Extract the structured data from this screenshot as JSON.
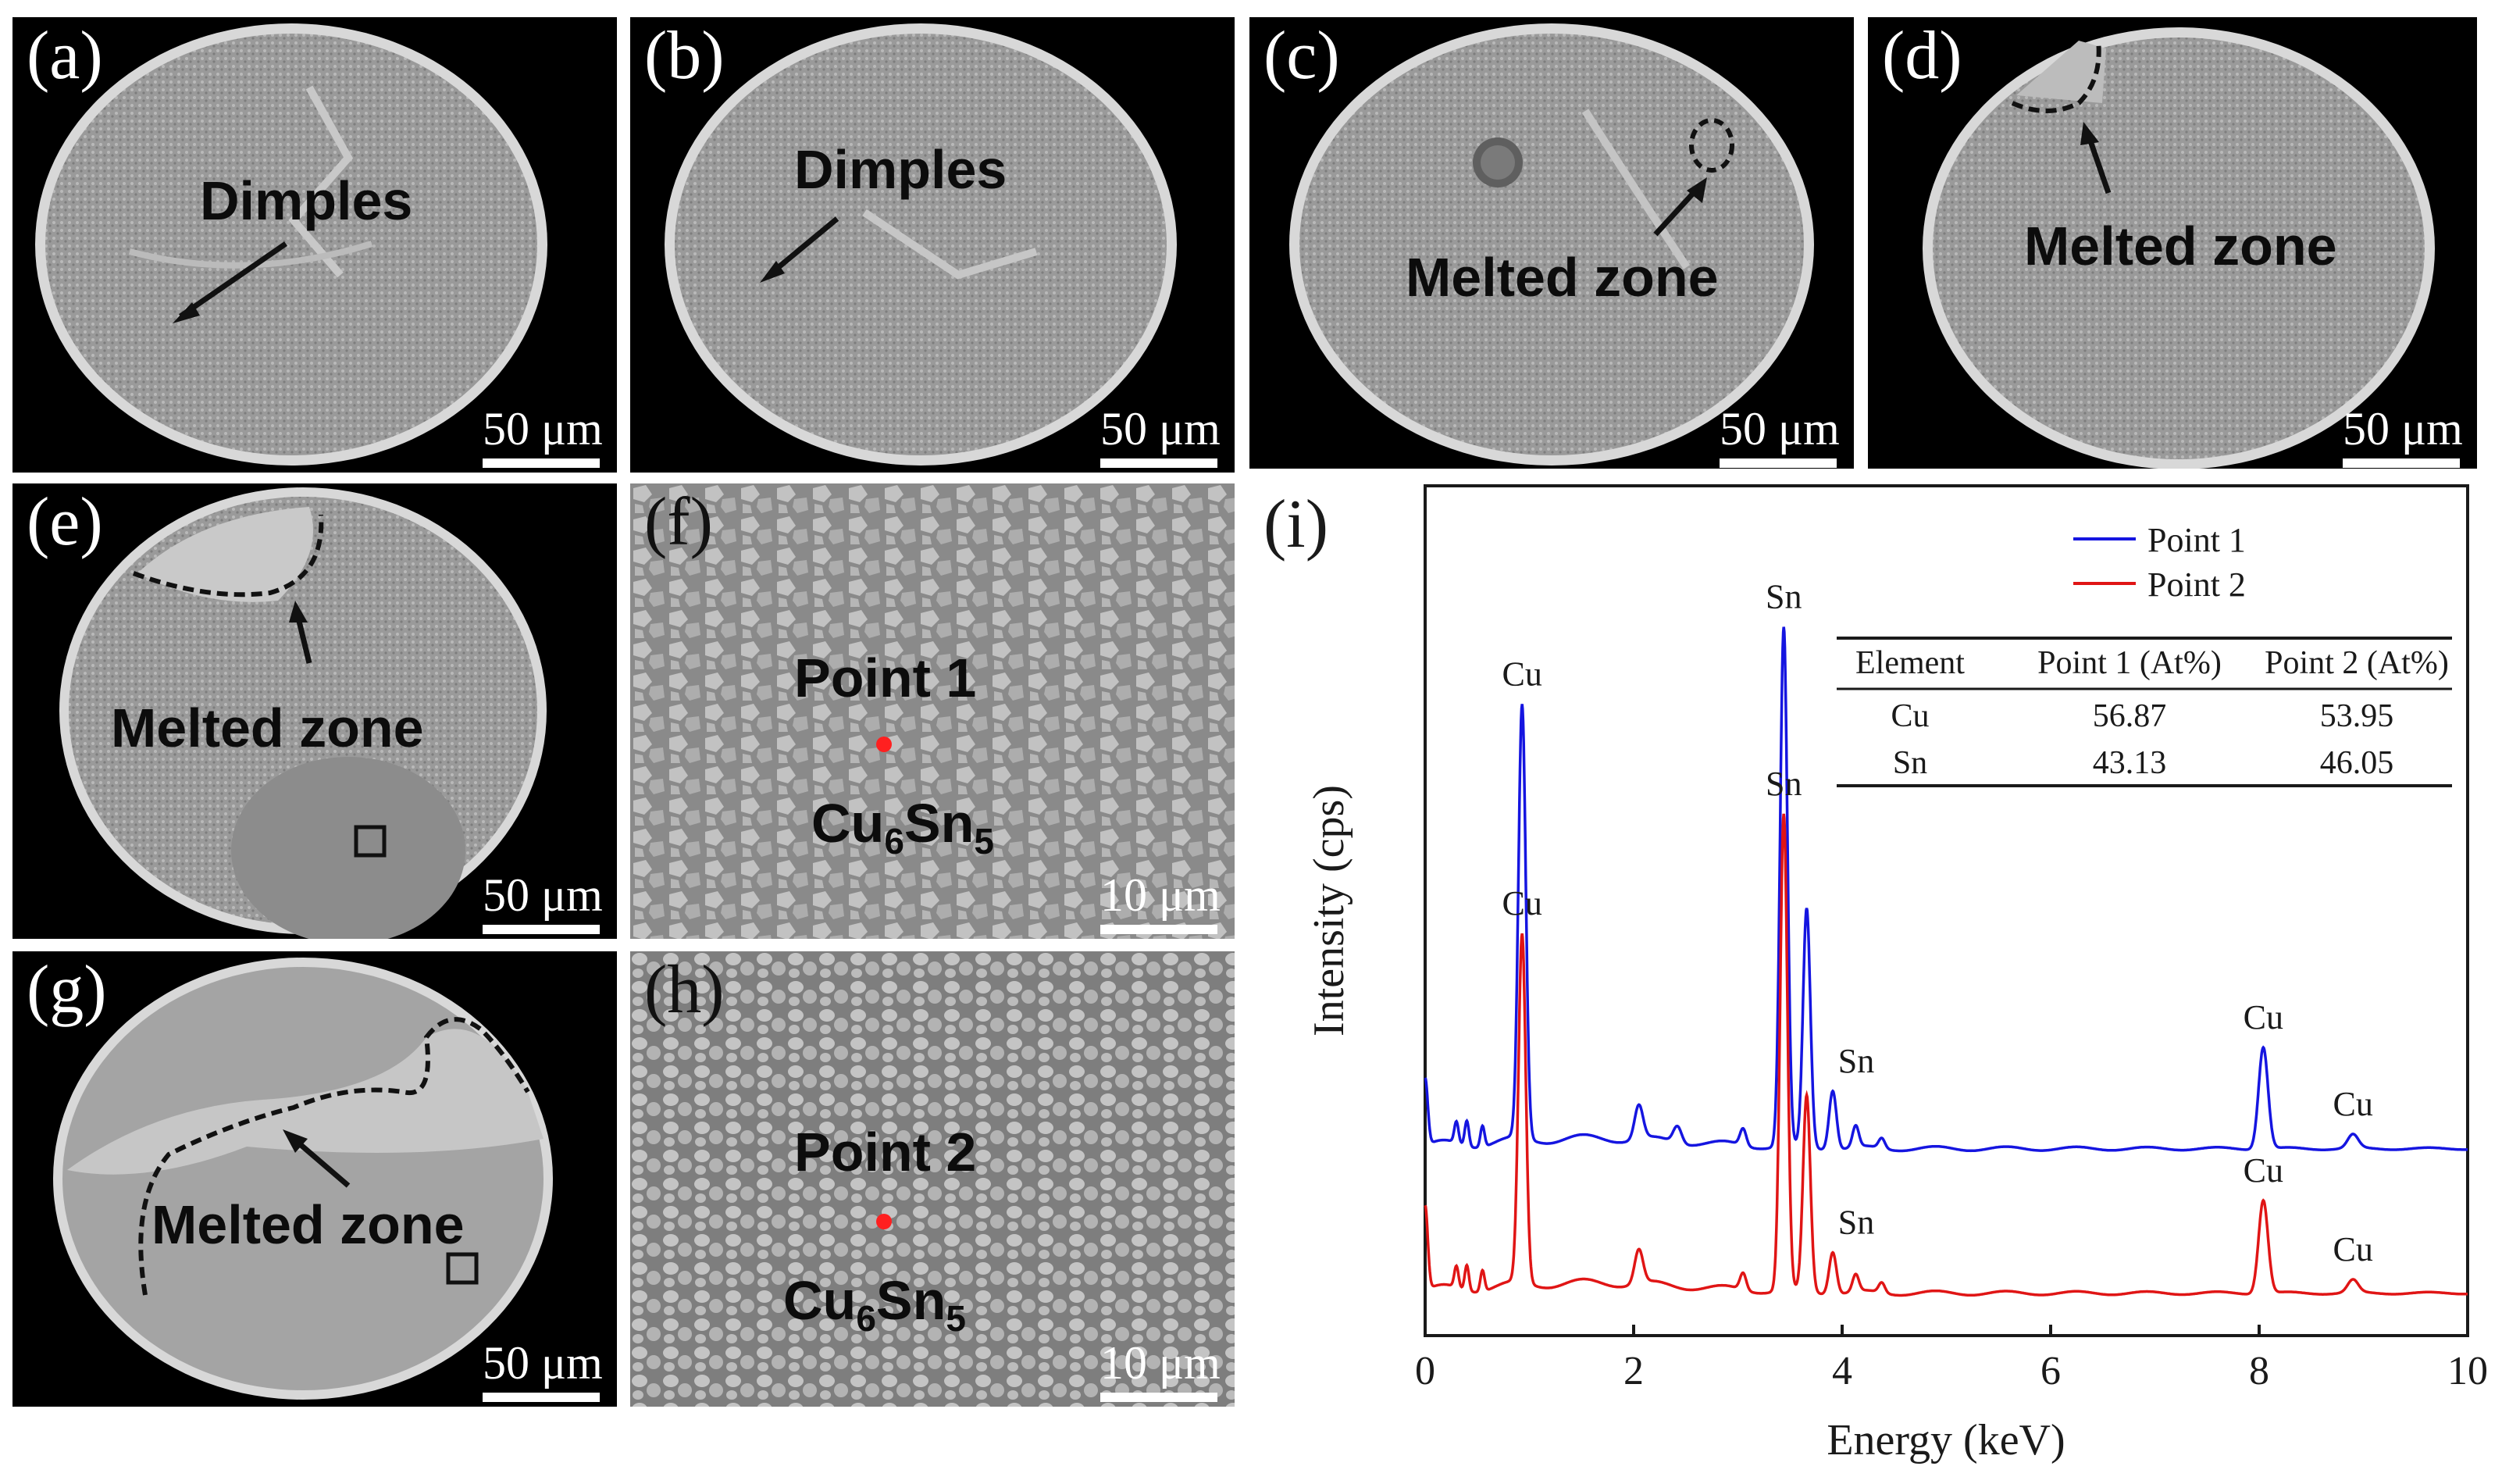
{
  "figure": {
    "panels": {
      "a": {
        "label": "(a)",
        "scale": "50 μm",
        "annotation": "Dimples"
      },
      "b": {
        "label": "(b)",
        "scale": "50 μm",
        "annotation": "Dimples"
      },
      "c": {
        "label": "(c)",
        "scale": "50 μm",
        "annotation": "Melted zone"
      },
      "d": {
        "label": "(d)",
        "scale": "50 μm",
        "annotation": "Melted zone"
      },
      "e": {
        "label": "(e)",
        "scale": "50 μm",
        "annotation": "Melted zone"
      },
      "f": {
        "label": "(f)",
        "scale": "10 μm",
        "point": "Point 1",
        "phase_base": "Cu",
        "phase_sub1": "6",
        "phase_mid": "Sn",
        "phase_sub2": "5"
      },
      "g": {
        "label": "(g)",
        "scale": "50 μm",
        "annotation": "Melted zone"
      },
      "h": {
        "label": "(h)",
        "scale": "10 μm",
        "point": "Point 2",
        "phase_base": "Cu",
        "phase_sub1": "6",
        "phase_mid": "Sn",
        "phase_sub2": "5"
      }
    }
  },
  "colors": {
    "series1": "#1515e0",
    "series2": "#e01515",
    "marker": "#ff2020"
  },
  "chart_data": {
    "type": "line",
    "panel_label": "(i)",
    "xlabel": "Energy (keV)",
    "ylabel": "Intensity (cps)",
    "xlim": [
      0,
      10
    ],
    "x_ticks": [
      0,
      2,
      4,
      6,
      8,
      10
    ],
    "legend": {
      "position": "top-right",
      "entries": [
        "Point 1",
        "Point 2"
      ]
    },
    "series": [
      {
        "name": "Point 1",
        "color": "#1515e0",
        "baseline": 0.22,
        "peaks": [
          {
            "x": 0.0,
            "h": 0.08,
            "w": 0.025
          },
          {
            "x": 0.3,
            "h": 0.025,
            "w": 0.02
          },
          {
            "x": 0.4,
            "h": 0.03,
            "w": 0.02
          },
          {
            "x": 0.55,
            "h": 0.025,
            "w": 0.02
          },
          {
            "x": 0.93,
            "h": 0.51,
            "w": 0.035
          },
          {
            "x": 2.05,
            "h": 0.04,
            "w": 0.04
          },
          {
            "x": 2.42,
            "h": 0.02,
            "w": 0.04
          },
          {
            "x": 3.05,
            "h": 0.02,
            "w": 0.03
          },
          {
            "x": 3.44,
            "h": 0.61,
            "w": 0.035
          },
          {
            "x": 3.66,
            "h": 0.28,
            "w": 0.035
          },
          {
            "x": 3.91,
            "h": 0.07,
            "w": 0.035
          },
          {
            "x": 4.13,
            "h": 0.025,
            "w": 0.03
          },
          {
            "x": 4.38,
            "h": 0.012,
            "w": 0.03
          },
          {
            "x": 8.04,
            "h": 0.12,
            "w": 0.045
          },
          {
            "x": 8.9,
            "h": 0.016,
            "w": 0.05
          }
        ]
      },
      {
        "name": "Point 2",
        "color": "#e01515",
        "baseline": 0.05,
        "peaks": [
          {
            "x": 0.0,
            "h": 0.1,
            "w": 0.025
          },
          {
            "x": 0.3,
            "h": 0.025,
            "w": 0.02
          },
          {
            "x": 0.4,
            "h": 0.03,
            "w": 0.02
          },
          {
            "x": 0.55,
            "h": 0.025,
            "w": 0.02
          },
          {
            "x": 0.93,
            "h": 0.41,
            "w": 0.035
          },
          {
            "x": 2.05,
            "h": 0.04,
            "w": 0.04
          },
          {
            "x": 3.05,
            "h": 0.02,
            "w": 0.03
          },
          {
            "x": 3.44,
            "h": 0.56,
            "w": 0.035
          },
          {
            "x": 3.66,
            "h": 0.23,
            "w": 0.035
          },
          {
            "x": 3.91,
            "h": 0.05,
            "w": 0.035
          },
          {
            "x": 4.13,
            "h": 0.02,
            "w": 0.03
          },
          {
            "x": 4.38,
            "h": 0.012,
            "w": 0.03
          },
          {
            "x": 8.04,
            "h": 0.11,
            "w": 0.045
          },
          {
            "x": 8.9,
            "h": 0.015,
            "w": 0.05
          }
        ]
      }
    ],
    "peak_labels": [
      {
        "text": "Cu",
        "x": 0.93,
        "series": 0
      },
      {
        "text": "Sn",
        "x": 3.44,
        "series": 0
      },
      {
        "text": "Sn",
        "x": 3.91,
        "series": 0
      },
      {
        "text": "Cu",
        "x": 8.04,
        "series": 0
      },
      {
        "text": "Cu",
        "x": 8.9,
        "series": 0
      },
      {
        "text": "Cu",
        "x": 0.93,
        "series": 1
      },
      {
        "text": "Sn",
        "x": 3.44,
        "series": 1
      },
      {
        "text": "Sn",
        "x": 3.91,
        "series": 1
      },
      {
        "text": "Cu",
        "x": 8.04,
        "series": 1
      },
      {
        "text": "Cu",
        "x": 8.9,
        "series": 1
      }
    ],
    "table": {
      "headers": [
        "Element",
        "Point 1 (At%)",
        "Point 2 (At%)"
      ],
      "rows": [
        [
          "Cu",
          "56.87",
          "53.95"
        ],
        [
          "Sn",
          "43.13",
          "46.05"
        ]
      ]
    }
  }
}
